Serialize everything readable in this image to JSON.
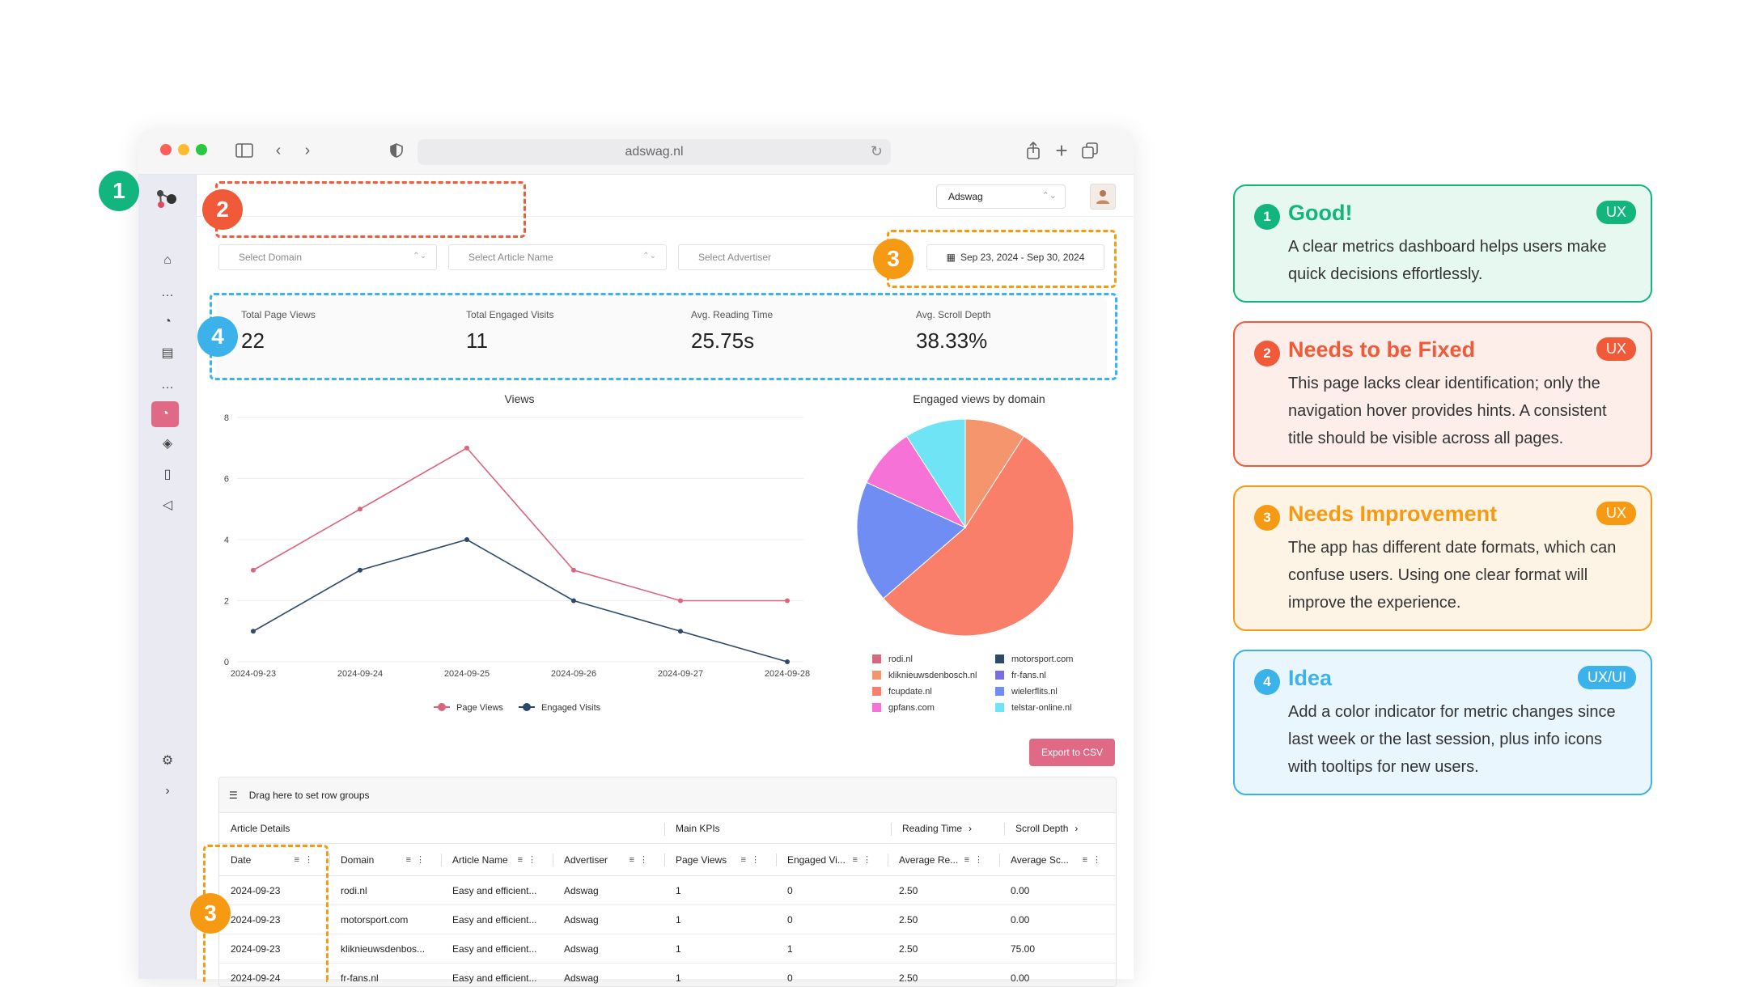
{
  "browser": {
    "url": "adswag.nl"
  },
  "header": {
    "workspace": "Adswag"
  },
  "filters": {
    "domain_placeholder": "Select Domain",
    "article_placeholder": "Select Article Name",
    "advertiser_placeholder": "Select Advertiser",
    "date_range": "Sep 23, 2024 - Sep 30, 2024"
  },
  "kpis": [
    {
      "label": "Total Page Views",
      "value": "22"
    },
    {
      "label": "Total Engaged Visits",
      "value": "11"
    },
    {
      "label": "Avg. Reading Time",
      "value": "25.75s"
    },
    {
      "label": "Avg. Scroll Depth",
      "value": "38.33%"
    }
  ],
  "chart_data": [
    {
      "type": "line",
      "title": "Views",
      "x": [
        "2024-09-23",
        "2024-09-24",
        "2024-09-25",
        "2024-09-26",
        "2024-09-27",
        "2024-09-28"
      ],
      "ylim": [
        0,
        8
      ],
      "yticks": [
        0,
        2,
        4,
        6,
        8
      ],
      "grid": true,
      "legend": "bottom",
      "series": [
        {
          "name": "Page Views",
          "values": [
            3,
            5,
            7,
            3,
            2,
            2
          ],
          "color": "#d9667f"
        },
        {
          "name": "Engaged Visits",
          "values": [
            1,
            3,
            4,
            2,
            1,
            0
          ],
          "color": "#2e4a6b"
        }
      ]
    },
    {
      "type": "pie",
      "title": "Engaged views by domain",
      "legend": "bottom",
      "categories": [
        "rodi.nl",
        "motorsport.com",
        "kliknieuwsdenbosch.nl",
        "fr-fans.nl",
        "fcupdate.nl",
        "wielerflits.nl",
        "gpfans.com",
        "telstar-online.nl"
      ],
      "values": [
        0,
        0,
        1,
        0,
        6,
        2,
        1,
        1
      ],
      "colors": [
        "#d9667f",
        "#2e4a6b",
        "#f4956e",
        "#7b6fe0",
        "#fa7f6a",
        "#6f8df2",
        "#f772d6",
        "#6ee4f5"
      ]
    }
  ],
  "actions": {
    "export": "Export to CSV"
  },
  "table": {
    "drag_hint": "Drag here to set row groups",
    "groups": [
      "Article Details",
      "Main KPIs",
      "Reading Time",
      "Scroll Depth"
    ],
    "columns": [
      "Date",
      "Domain",
      "Article Name",
      "Advertiser",
      "Page Views",
      "Engaged Vi...",
      "Average Re...",
      "Average Sc..."
    ],
    "rows": [
      [
        "2024-09-23",
        "rodi.nl",
        "Easy and efficient...",
        "Adswag",
        "1",
        "0",
        "2.50",
        "0.00"
      ],
      [
        "2024-09-23",
        "motorsport.com",
        "Easy and efficient...",
        "Adswag",
        "1",
        "0",
        "2.50",
        "0.00"
      ],
      [
        "2024-09-23",
        "kliknieuwsdenbos...",
        "Easy and efficient...",
        "Adswag",
        "1",
        "1",
        "2.50",
        "75.00"
      ],
      [
        "2024-09-24",
        "fr-fans.nl",
        "Easy and efficient...",
        "Adswag",
        "1",
        "0",
        "2.50",
        "0.00"
      ]
    ]
  },
  "annotations": {
    "markers": [
      "1",
      "2",
      "3",
      "4",
      "3"
    ],
    "colors": {
      "good": "#12b57e",
      "fix": "#f05a38",
      "improve": "#f79a13",
      "idea": "#3cb2ea"
    }
  },
  "cards": [
    {
      "num": "1",
      "title": "Good!",
      "tag": "UX",
      "body": "A clear metrics dashboard helps users make quick decisions effortlessly."
    },
    {
      "num": "2",
      "title": "Needs to be Fixed",
      "tag": "UX",
      "body": "This page lacks clear identification; only the navigation hover provides hints. A consistent title should be visible across all pages."
    },
    {
      "num": "3",
      "title": "Needs Improvement",
      "tag": "UX",
      "body": "The app has different date formats, which can confuse users. Using one clear format will improve the experience."
    },
    {
      "num": "4",
      "title": "Idea",
      "tag": "UX/UI",
      "body": "Add a color indicator for metric changes since last week or the last session, plus info icons with tooltips for new users."
    }
  ]
}
